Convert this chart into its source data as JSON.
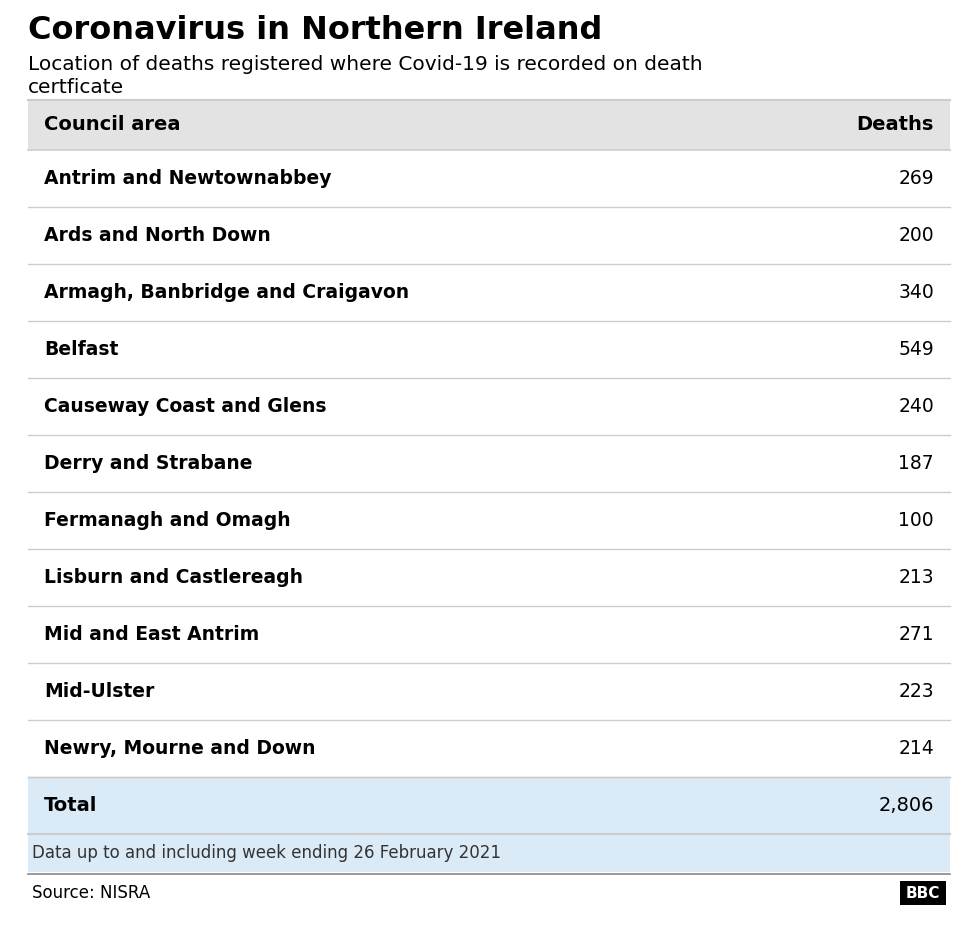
{
  "title": "Coronavirus in Northern Ireland",
  "subtitle_line1": "Location of deaths registered where Covid-19 is recorded on death",
  "subtitle_line2": "certficate",
  "col_header": [
    "Council area",
    "Deaths"
  ],
  "rows": [
    [
      "Antrim and Newtownabbey",
      "269"
    ],
    [
      "Ards and North Down",
      "200"
    ],
    [
      "Armagh, Banbridge and Craigavon",
      "340"
    ],
    [
      "Belfast",
      "549"
    ],
    [
      "Causeway Coast and Glens",
      "240"
    ],
    [
      "Derry and Strabane",
      "187"
    ],
    [
      "Fermanagh and Omagh",
      "100"
    ],
    [
      "Lisburn and Castlereagh",
      "213"
    ],
    [
      "Mid and East Antrim",
      "271"
    ],
    [
      "Mid-Ulster",
      "223"
    ],
    [
      "Newry, Mourne and Down",
      "214"
    ]
  ],
  "total_row": [
    "Total",
    "2,806"
  ],
  "footnote": "Data up to and including week ending 26 February 2021",
  "source": "Source: NISRA",
  "header_bg": "#e3e3e3",
  "total_bg": "#daeaf7",
  "border_color": "#cccccc",
  "text_color": "#000000",
  "footnote_color": "#333333",
  "source_color": "#000000",
  "bbc_box_color": "#000000",
  "bbc_text_color": "#ffffff",
  "bg_color": "#ffffff"
}
